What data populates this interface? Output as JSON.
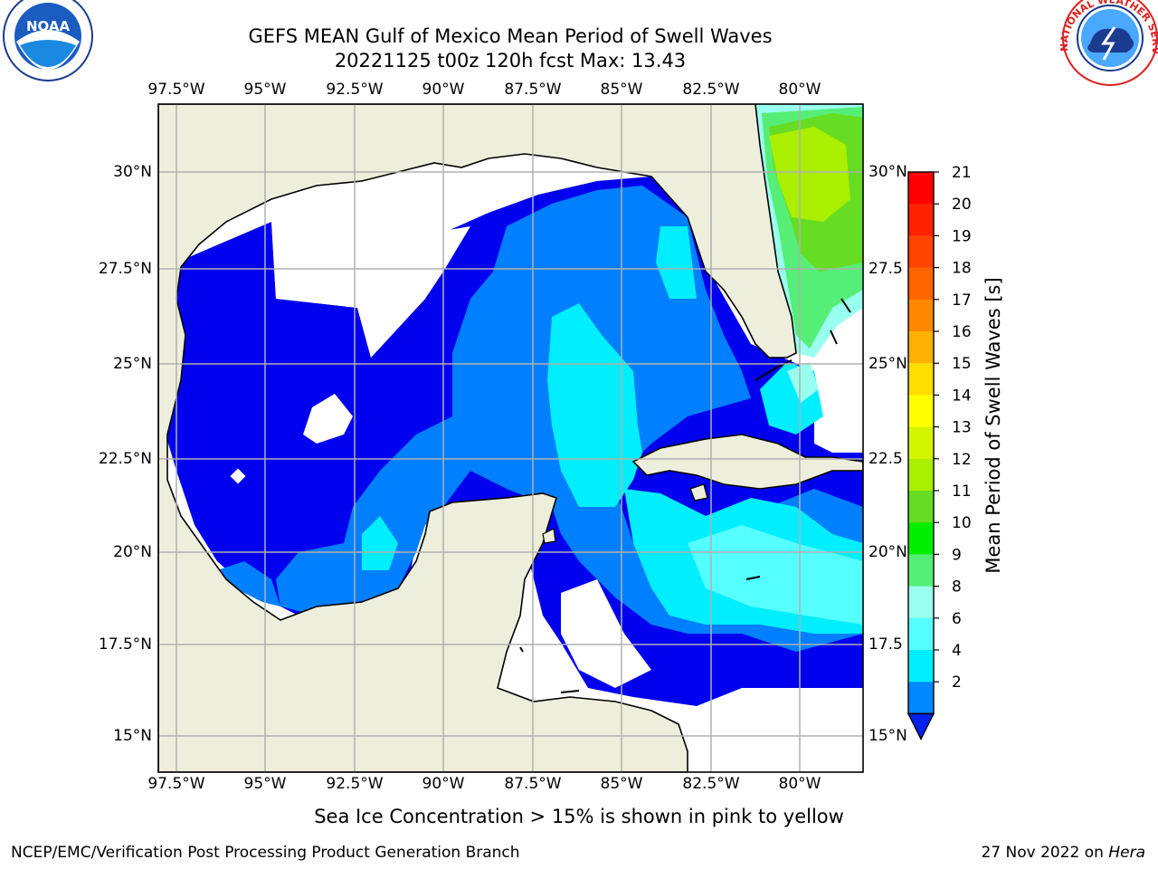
{
  "title_line1": "GEFS MEAN Gulf of Mexico Mean Period of Swell Waves",
  "title_line2": "20221125 t00z 120h fcst   Max: 13.43",
  "noaa_logo_text": "NOAA",
  "noaa_logo_ring": "NATIONAL OCEANIC AND ATMOSPHERIC ADMINISTRATION · U.S. DEPARTMENT OF COMMERCE",
  "nws_logo_ring": "NATIONAL WEATHER SERVICE",
  "lon_ticks": [
    "97.5°W",
    "95°W",
    "92.5°W",
    "90°W",
    "87.5°W",
    "85°W",
    "82.5°W",
    "80°W"
  ],
  "lat_ticks_left": [
    "30°N",
    "27.5°N",
    "25°N",
    "22.5°N",
    "20°N",
    "17.5°N",
    "15°N"
  ],
  "lat_ticks_right": [
    "30°N",
    "27.5",
    "25°N",
    "22.5",
    "20°N",
    "17.5",
    "15°N"
  ],
  "colorbar": {
    "label": "Mean Period of Swell Waves [s]",
    "ticks": [
      "21",
      "20",
      "19",
      "18",
      "17",
      "16",
      "15",
      "14",
      "13",
      "12",
      "11",
      "10",
      "9",
      "8",
      "6",
      "4",
      "2"
    ],
    "colors": [
      "#ff0000",
      "#ff2200",
      "#ff4400",
      "#ff6600",
      "#ff8800",
      "#ffb000",
      "#ffdd00",
      "#ffff00",
      "#d4f500",
      "#aaee00",
      "#66dd22",
      "#00ee00",
      "#55ee77",
      "#99ffee",
      "#55ffff",
      "#00eeff",
      "#0088ff"
    ],
    "extend_color": "#0022ee"
  },
  "bottom_note": "Sea Ice Concentration > 15% is shown in pink to yellow",
  "footer_left": "NCEP/EMC/Verification Post Processing Product Generation Branch",
  "footer_date": "27 Nov 2022 on ",
  "footer_host": "Hera",
  "colors": {
    "land": "#eeeedc",
    "period_2_4": "#0000ee",
    "period_4_6": "#0080ff",
    "period_6_8": "#00eeff",
    "period_8_9": "#55ffff",
    "period_9_10": "#99ffee",
    "period_10_11": "#55ee77",
    "period_11_13": "#66dd22",
    "period_13_14": "#aaee00",
    "grid": "#b0b0b0"
  }
}
